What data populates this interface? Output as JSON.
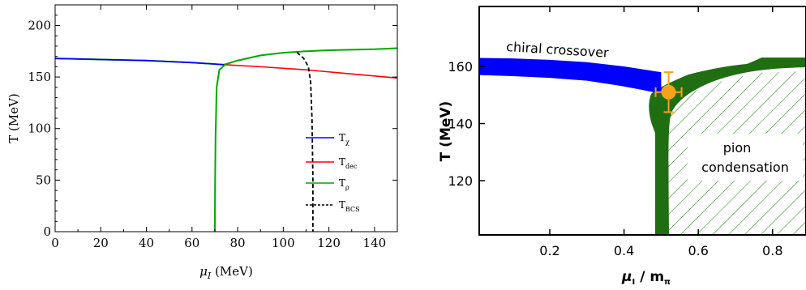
{
  "chart_data": [
    {
      "type": "line",
      "xlabel_symbol": "μ",
      "xlabel_sub": "I",
      "xlabel_rest": " (MeV)",
      "ylabel": "T (MeV)",
      "xlim": [
        0,
        150
      ],
      "ylim": [
        0,
        220
      ],
      "xticks": [
        "0",
        "20",
        "40",
        "60",
        "80",
        "100",
        "120",
        "140"
      ],
      "yticks": [
        "0",
        "50",
        "100",
        "150",
        "200"
      ],
      "xtick_values": [
        0,
        20,
        40,
        60,
        80,
        100,
        120,
        140
      ],
      "ytick_values": [
        0,
        50,
        100,
        150,
        200
      ],
      "legend_placement": "center-right",
      "series": [
        {
          "name": "T",
          "name_sub": "χ",
          "color": "#0000ff",
          "dash": "solid",
          "x": [
            0,
            20,
            40,
            60,
            74
          ],
          "y": [
            168,
            167,
            166,
            164,
            162
          ]
        },
        {
          "name": "T",
          "name_sub": "dec",
          "color": "#ff0000",
          "dash": "solid",
          "x": [
            0,
            20,
            40,
            60,
            74,
            90,
            110,
            130,
            150
          ],
          "y": [
            168,
            167,
            166,
            164,
            162,
            160,
            157,
            153,
            149
          ]
        },
        {
          "name": "T",
          "name_sub": "ρ",
          "color": "#00aa00",
          "dash": "solid",
          "x": [
            0,
            20,
            40,
            60,
            74,
            80,
            90,
            100,
            110,
            120,
            130,
            140,
            150,
            74.5,
            72,
            70.8,
            70.3,
            70.1,
            70.0
          ],
          "y": [
            168,
            167,
            166,
            164,
            162,
            166,
            171,
            173.5,
            175,
            176,
            176.5,
            177,
            178,
            162,
            157,
            140,
            90,
            40,
            0
          ]
        },
        {
          "name": "T",
          "name_sub": "BCS",
          "color": "#000000",
          "dash": "dashed",
          "x": [
            106,
            109,
            111,
            112,
            112.6,
            113,
            113
          ],
          "y": [
            174,
            168,
            160,
            145,
            110,
            50,
            0
          ]
        }
      ]
    },
    {
      "type": "area",
      "xlabel_main": "μ",
      "xlabel_sub": "I",
      "xlabel_rest": " / m",
      "xlabel_sub2": "π",
      "ylabel": "T (MeV)",
      "xlim": [
        0.01,
        0.89
      ],
      "ylim": [
        101,
        181
      ],
      "xticks": [
        "0.2",
        "0.4",
        "0.6",
        "0.8"
      ],
      "yticks": [
        "120",
        "140",
        "160"
      ],
      "xtick_values": [
        0.2,
        0.4,
        0.6,
        0.8
      ],
      "ytick_values": [
        120,
        140,
        160
      ],
      "annotations": {
        "chiral_crossover": "chiral crossover",
        "pion_line1": "pion",
        "pion_line2": "condensation"
      },
      "colors": {
        "crossover": "#0000ff",
        "boundary": "#1f6e12",
        "point": "#f5a31a",
        "hatch": "#1f6e12"
      },
      "crossover_band": {
        "x": [
          0.01,
          0.1,
          0.2,
          0.3,
          0.4,
          0.5
        ],
        "upper": [
          163,
          162.8,
          162.3,
          161.5,
          160,
          158
        ],
        "lower": [
          157,
          156.6,
          156,
          155,
          153,
          150.5
        ]
      },
      "experimental_point": {
        "x": 0.52,
        "y": 151,
        "xerr": 0.035,
        "yerr": 7
      }
    }
  ]
}
